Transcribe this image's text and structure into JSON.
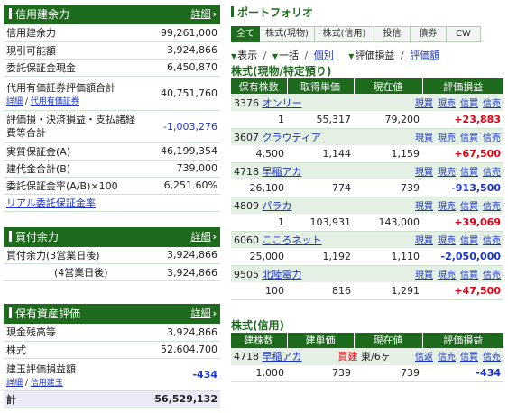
{
  "margin_panel": {
    "title": "信用建余力",
    "detail": "詳細",
    "rows": [
      {
        "label": "信用建余力",
        "value": "99,261,000"
      },
      {
        "label": "現引可能額",
        "value": "3,924,866"
      },
      {
        "label": "委託保証金現金",
        "value": "6,450,870"
      },
      {
        "label": "代用有価証券評価額合計",
        "sub1": "詳細",
        "sub2": "代用有価証券",
        "value": "40,751,760"
      },
      {
        "label": "評価損・決済損益・支払諸経費等合計",
        "value": "-1,003,276"
      },
      {
        "label": "実質保証金(A)",
        "value": "46,199,354"
      },
      {
        "label": "建代金合計(B)",
        "value": "739,000"
      },
      {
        "label": "委託保証金率(A/B)×100",
        "value": "6,251.60%"
      }
    ],
    "link": "リアル委託保証金率"
  },
  "buying_panel": {
    "title": "買付余力",
    "detail": "詳細",
    "rows": [
      {
        "label": "買付余力(3営業日後)",
        "value": "3,924,866"
      },
      {
        "label": "(4営業日後)",
        "value": "3,924,866"
      }
    ]
  },
  "assets_panel": {
    "title": "保有資産評価",
    "detail": "詳細",
    "rows": [
      {
        "label": "現金残高等",
        "value": "3,924,866"
      },
      {
        "label": "株式",
        "value": "52,604,700"
      },
      {
        "label": "建玉評価損益額",
        "sub1": "詳細",
        "sub2": "信用建玉",
        "value": "-434"
      }
    ],
    "total": {
      "label": "計",
      "value": "56,529,132"
    }
  },
  "portfolio": {
    "title": "ポートフォリオ",
    "tabs": [
      "全て",
      "株式(現物)",
      "株式(信用)",
      "投信",
      "債券",
      "CW"
    ],
    "active_tab": 0,
    "toolbar": {
      "view": "表示",
      "sep": "/",
      "bulk": "一括",
      "individual": "個別",
      "eval": "評価損益",
      "amount": "評価額"
    },
    "cash_section": "株式(現物/特定預り)",
    "cash_headers": [
      "保有株数",
      "取得単価",
      "現在値",
      "評価損益"
    ],
    "actions": [
      "現買",
      "現売",
      "信買",
      "信売"
    ],
    "holdings": [
      {
        "code": "3376",
        "name": "オンリー",
        "qty": "1",
        "cost": "55,317",
        "price": "79,200",
        "pl": "+23,883",
        "sign": "pos"
      },
      {
        "code": "3607",
        "name": "クラウディア",
        "qty": "4,500",
        "cost": "1,144",
        "price": "1,159",
        "pl": "+67,500",
        "sign": "pos"
      },
      {
        "code": "4718",
        "name": "早稲アカ",
        "qty": "26,100",
        "cost": "774",
        "price": "739",
        "pl": "-913,500",
        "sign": "neg"
      },
      {
        "code": "4809",
        "name": "パラカ",
        "qty": "1",
        "cost": "103,931",
        "price": "143,000",
        "pl": "+39,069",
        "sign": "pos"
      },
      {
        "code": "6060",
        "name": "こころネット",
        "qty": "25,000",
        "cost": "1,192",
        "price": "1,110",
        "pl": "-2,050,000",
        "sign": "neg"
      },
      {
        "code": "9505",
        "name": "北陸電力",
        "qty": "100",
        "cost": "816",
        "price": "1,291",
        "pl": "+47,500",
        "sign": "pos"
      }
    ],
    "margin_section": "株式(信用)",
    "margin_headers": [
      "建株数",
      "建単価",
      "現在値",
      "評価損益"
    ],
    "margin_actions": [
      "信返",
      "信売",
      "信買",
      "信売"
    ],
    "margin_holdings": [
      {
        "code": "4718",
        "name": "早稲アカ",
        "side": "買建",
        "market": "東/6ヶ",
        "qty": "1,000",
        "cost": "739",
        "price": "739",
        "pl": "-434",
        "sign": "neg"
      }
    ]
  },
  "colors": {
    "header_green": "#1e6b1e",
    "positive": "#e60012",
    "negative": "#1a33c8"
  }
}
